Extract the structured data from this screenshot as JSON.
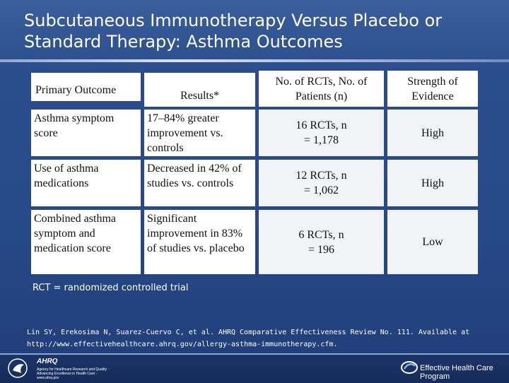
{
  "title": "Subcutaneous Immunotherapy Versus Placebo or Standard Therapy: Asthma Outcomes",
  "table": {
    "headers": {
      "primary_outcome": "Primary Outcome",
      "results": "Results*",
      "rcts": "No. of RCTs, No. of Patients (n)",
      "strength": "Strength of Evidence"
    },
    "rows": [
      {
        "outcome": "Asthma symptom score",
        "result": "17–84% greater improvement vs. controls",
        "rcts": "16 RCTs, n = 1,178",
        "strength": "High"
      },
      {
        "outcome": "Use of asthma medications",
        "result": "Decreased in 42% of studies vs. controls",
        "rcts": "12 RCTs, n = 1,062",
        "strength": "High"
      },
      {
        "outcome": "Combined asthma symptom and medication score",
        "result": "Significant improvement in 83% of studies vs. placebo",
        "rcts": "6 RCTs, n = 196",
        "strength": "Low"
      }
    ]
  },
  "footnote": "RCT = randomized controlled trial",
  "citation": "Lin SY, Erekosima N, Suarez-Cuervo C, et al. AHRQ Comparative Effectiveness Review No. 111. Available at http://www.effectivehealthcare.ahrq.gov/allergy-asthma-immunotherapy.cfm.",
  "footer": {
    "ahrq_brand": "AHRQ",
    "ahrq_tagline": "Agency for Healthcare Research and Quality · Advancing Excellence in Health Care · www.ahrq.gov",
    "ehc_label": "Effective Health Care Program"
  }
}
